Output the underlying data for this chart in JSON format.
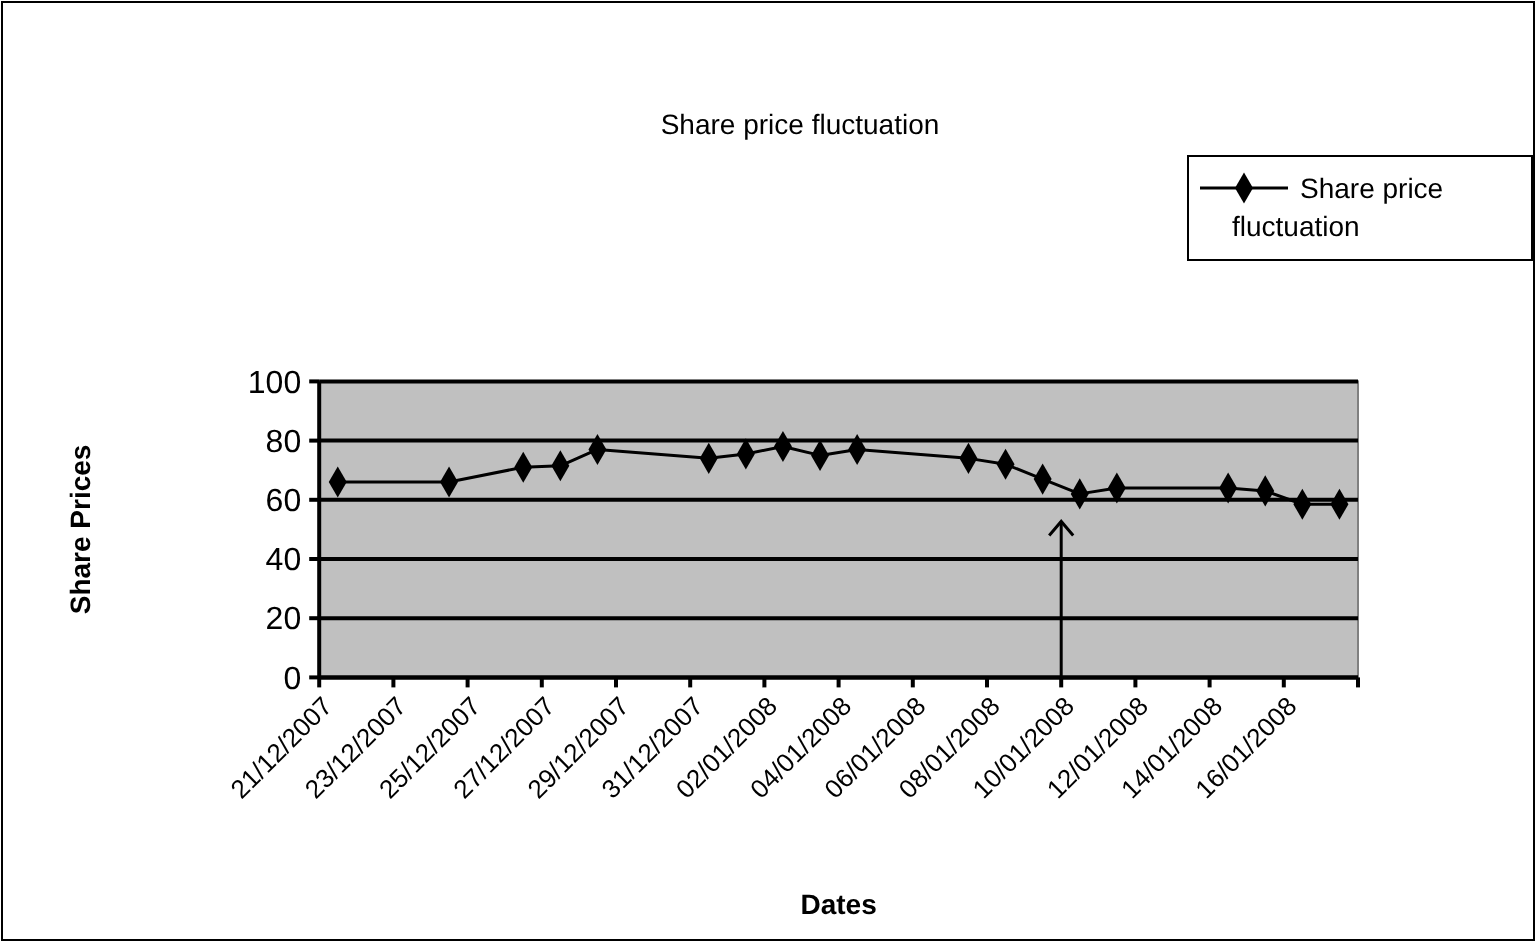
{
  "chart_data": {
    "type": "line",
    "title": "Share price fluctuation",
    "xlabel": "Dates",
    "ylabel": "Share Prices",
    "x": [
      "2007-12-21T12:00",
      "2007-12-24T12:00",
      "2007-12-26T12:00",
      "2007-12-27T12:00",
      "2007-12-28T12:00",
      "2007-12-31T12:00",
      "2008-01-01T12:00",
      "2008-01-02T12:00",
      "2008-01-03T12:00",
      "2008-01-04T12:00",
      "2008-01-07T12:00",
      "2008-01-08T12:00",
      "2008-01-09T12:00",
      "2008-01-10T12:00",
      "2008-01-11T12:00",
      "2008-01-14T12:00",
      "2008-01-15T12:00",
      "2008-01-16T12:00",
      "2008-01-17T12:00"
    ],
    "series": [
      {
        "name": "Share price fluctuation",
        "color": "#000000",
        "values": [
          66,
          66,
          71,
          71.5,
          77,
          74,
          75.5,
          78,
          75,
          77,
          74,
          72,
          67,
          62,
          64,
          64,
          63,
          58.5,
          58.5
        ]
      }
    ],
    "xlim": [
      "2007-12-21",
      "2008-01-18"
    ],
    "xticks": [
      {
        "value": "2007-12-21",
        "label": "21/12/2007"
      },
      {
        "value": "2007-12-23",
        "label": "23/12/2007"
      },
      {
        "value": "2007-12-25",
        "label": "25/12/2007"
      },
      {
        "value": "2007-12-27",
        "label": "27/12/2007"
      },
      {
        "value": "2007-12-29",
        "label": "29/12/2007"
      },
      {
        "value": "2007-12-31",
        "label": "31/12/2007"
      },
      {
        "value": "2008-01-02",
        "label": "02/01/2008"
      },
      {
        "value": "2008-01-04",
        "label": "04/01/2008"
      },
      {
        "value": "2008-01-06",
        "label": "06/01/2008"
      },
      {
        "value": "2008-01-08",
        "label": "08/01/2008"
      },
      {
        "value": "2008-01-10",
        "label": "10/01/2008"
      },
      {
        "value": "2008-01-12",
        "label": "12/01/2008"
      },
      {
        "value": "2008-01-14",
        "label": "14/01/2008"
      },
      {
        "value": "2008-01-16",
        "label": "16/01/2008"
      },
      {
        "value": "2008-01-18",
        "label": null
      }
    ],
    "ylim": [
      0,
      100
    ],
    "yticks": [
      0,
      20,
      40,
      60,
      80,
      100
    ],
    "grid": "y",
    "legend": "top right",
    "marker": "diamond",
    "line_style": "solid"
  }
}
